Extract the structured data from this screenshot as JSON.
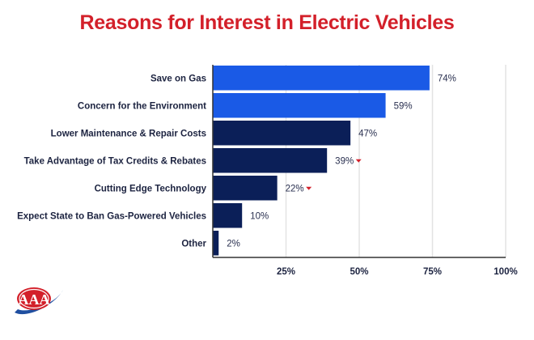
{
  "chart_data": {
    "type": "bar",
    "orientation": "horizontal",
    "title": "Reasons for Interest in Electric Vehicles",
    "categories": [
      "Save on Gas",
      "Concern for the Environment",
      "Lower Maintenance & Repair Costs",
      "Take Advantage of Tax Credits & Rebates",
      "Cutting Edge Technology",
      "Expect State to Ban Gas-Powered Vehicles",
      "Other"
    ],
    "values": [
      74,
      59,
      47,
      39,
      22,
      10,
      2
    ],
    "value_labels": [
      "74%",
      "59%",
      "47%",
      "39%",
      "22%",
      "10%",
      "2%"
    ],
    "decrease_marker": [
      false,
      false,
      false,
      true,
      true,
      false,
      false
    ],
    "bar_colors": [
      "#1a5ae6",
      "#1a5ae6",
      "#0b1f58",
      "#0b1f58",
      "#0b1f58",
      "#0b1f58",
      "#0b1f58"
    ],
    "xlim": [
      0,
      100
    ],
    "xticks": [
      25,
      50,
      75,
      100
    ],
    "xtick_labels": [
      "25%",
      "50%",
      "75%",
      "100%"
    ],
    "grid": true,
    "marker_color": "#d3202a",
    "title_color": "#d3202a"
  },
  "logo": {
    "text": "AAA"
  }
}
